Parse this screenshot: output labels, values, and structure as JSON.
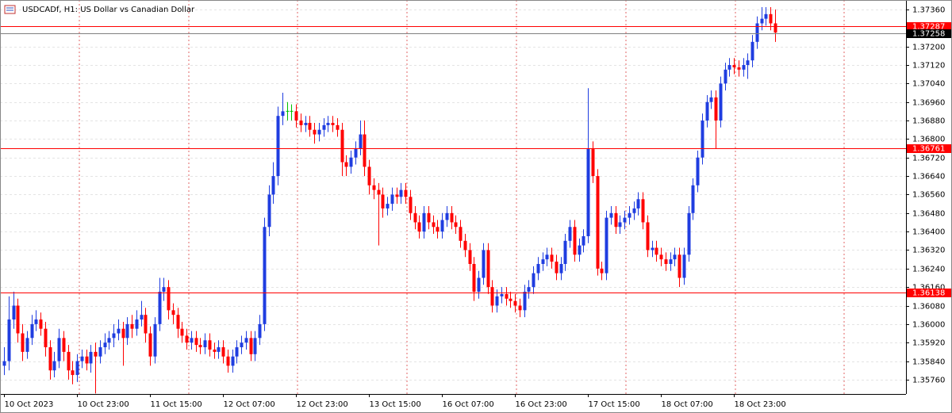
{
  "chart_data": {
    "type": "candlestick",
    "title": "USDCADf, H1: US Dollar vs Canadian Dollar",
    "categories": [
      "10 Oct 2023",
      null,
      null,
      null,
      null,
      null,
      null,
      null,
      null,
      null,
      null,
      null,
      null,
      null,
      null,
      null,
      "10 Oct 23:00",
      null,
      null,
      null,
      null,
      null,
      null,
      null,
      null,
      null,
      null,
      null,
      null,
      null,
      null,
      null,
      "11 Oct 15:00",
      null,
      null,
      null,
      null,
      null,
      null,
      null,
      null,
      null,
      null,
      null,
      null,
      null,
      null,
      null,
      "12 Oct 07:00",
      null,
      null,
      null,
      null,
      null,
      null,
      null,
      null,
      null,
      null,
      null,
      null,
      null,
      null,
      null,
      "12 Oct 23:00",
      null,
      null,
      null,
      null,
      null,
      null,
      null,
      null,
      null,
      null,
      null,
      null,
      null,
      null,
      null,
      "13 Oct 15:00",
      null,
      null,
      null,
      null,
      null,
      null,
      null,
      null,
      null,
      null,
      null,
      null,
      null,
      null,
      null,
      "16 Oct 07:00",
      null,
      null,
      null,
      null,
      null,
      null,
      null,
      null,
      null,
      null,
      null,
      null,
      null,
      null,
      null,
      "16 Oct 23:00",
      null,
      null,
      null,
      null,
      null,
      null,
      null,
      null,
      null,
      null,
      null,
      null,
      null,
      null,
      null,
      "17 Oct 15:00",
      null,
      null,
      null,
      null,
      null,
      null,
      null,
      null,
      null,
      null,
      null,
      null,
      null,
      null,
      null,
      "18 Oct 07:00",
      null,
      null,
      null,
      null,
      null,
      null,
      null,
      null,
      null,
      null,
      null,
      null,
      null,
      null,
      null,
      "18 Oct 23:00",
      null,
      null,
      null,
      null,
      null,
      null,
      null,
      null,
      null
    ],
    "open": [
      1.3582,
      1.3584,
      1.3602,
      1.3608,
      1.3596,
      1.3588,
      1.3594,
      1.36,
      1.3602,
      1.3598,
      1.359,
      1.358,
      1.3584,
      1.3594,
      1.3588,
      1.358,
      1.3578,
      1.3584,
      1.3586,
      1.3583,
      1.3588,
      1.3586,
      1.359,
      1.3592,
      1.3594,
      1.3596,
      1.3598,
      1.3594,
      1.36,
      1.3598,
      1.3602,
      1.3604,
      1.3596,
      1.3586,
      1.36,
      1.3614,
      1.3616,
      1.3606,
      1.3604,
      1.3598,
      1.3595,
      1.3592,
      1.3594,
      1.3591,
      1.359,
      1.3593,
      1.3589,
      1.3588,
      1.359,
      1.3586,
      1.3582,
      1.3586,
      1.359,
      1.3592,
      1.3594,
      1.3587,
      1.3594,
      1.36,
      1.3642,
      1.3656,
      1.3664,
      1.369,
      1.3692,
      1.3692,
      1.3692,
      1.3688,
      1.3686,
      1.3687,
      1.3684,
      1.3682,
      1.3684,
      1.3686,
      1.3687,
      1.3686,
      1.3684,
      1.367,
      1.3668,
      1.3672,
      1.3676,
      1.3682,
      1.3668,
      1.366,
      1.3658,
      1.3656,
      1.365,
      1.3652,
      1.3656,
      1.3655,
      1.3658,
      1.3655,
      1.3648,
      1.3644,
      1.364,
      1.3648,
      1.3644,
      1.3642,
      1.364,
      1.3645,
      1.3648,
      1.3644,
      1.3642,
      1.3636,
      1.3632,
      1.3626,
      1.3614,
      1.362,
      1.3632,
      1.3616,
      1.3608,
      1.3612,
      1.3613,
      1.3611,
      1.361,
      1.3608,
      1.3606,
      1.3614,
      1.3616,
      1.3622,
      1.3626,
      1.3628,
      1.363,
      1.3627,
      1.3622,
      1.3626,
      1.3636,
      1.3642,
      1.363,
      1.3634,
      1.3638,
      1.3676,
      1.3664,
      1.3624,
      1.3622,
      1.3646,
      1.3648,
      1.3642,
      1.3644,
      1.3646,
      1.3648,
      1.365,
      1.3654,
      1.3644,
      1.3632,
      1.3633,
      1.363,
      1.3628,
      1.3626,
      1.3628,
      1.363,
      1.362,
      1.363,
      1.3648,
      1.366,
      1.3672,
      1.3688,
      1.3696,
      1.3698,
      1.3688,
      1.3704,
      1.371,
      1.3712,
      1.3711,
      1.371,
      1.3712,
      1.3714,
      1.3722,
      1.373,
      1.3732,
      1.3734,
      1.373
    ],
    "high": [
      1.359,
      1.3612,
      1.3614,
      1.3611,
      1.36,
      1.3597,
      1.3604,
      1.3606,
      1.3605,
      1.3601,
      1.3593,
      1.3588,
      1.3598,
      1.3597,
      1.3591,
      1.3584,
      1.3587,
      1.3589,
      1.3589,
      1.3591,
      1.3592,
      1.3593,
      1.3596,
      1.3597,
      1.36,
      1.3602,
      1.3601,
      1.3603,
      1.3604,
      1.3606,
      1.361,
      1.3607,
      1.3599,
      1.3603,
      1.362,
      1.362,
      1.3619,
      1.3609,
      1.3607,
      1.3601,
      1.3598,
      1.3597,
      1.3597,
      1.3594,
      1.3596,
      1.3596,
      1.3592,
      1.3593,
      1.3593,
      1.3589,
      1.3589,
      1.3593,
      1.3595,
      1.3597,
      1.3597,
      1.3597,
      1.3604,
      1.3646,
      1.366,
      1.367,
      1.3694,
      1.37,
      1.3696,
      1.3695,
      1.3695,
      1.3691,
      1.369,
      1.369,
      1.3687,
      1.3687,
      1.3689,
      1.369,
      1.369,
      1.3689,
      1.3687,
      1.3673,
      1.3675,
      1.3679,
      1.3688,
      1.3688,
      1.3671,
      1.3663,
      1.3661,
      1.3659,
      1.3655,
      1.3659,
      1.3659,
      1.3661,
      1.3661,
      1.3658,
      1.3651,
      1.3647,
      1.3651,
      1.3651,
      1.3647,
      1.3645,
      1.3648,
      1.3651,
      1.3651,
      1.3647,
      1.3645,
      1.3639,
      1.3635,
      1.3629,
      1.3623,
      1.3635,
      1.3635,
      1.3619,
      1.3615,
      1.3616,
      1.3616,
      1.3614,
      1.3613,
      1.3611,
      1.3617,
      1.3619,
      1.3625,
      1.3629,
      1.3631,
      1.3633,
      1.3633,
      1.363,
      1.3629,
      1.3639,
      1.3645,
      1.3645,
      1.3637,
      1.3641,
      1.3702,
      1.3679,
      1.3667,
      1.3627,
      1.3649,
      1.3651,
      1.3651,
      1.3647,
      1.3649,
      1.3651,
      1.3653,
      1.3657,
      1.3657,
      1.3647,
      1.3636,
      1.3636,
      1.3633,
      1.3631,
      1.3631,
      1.3633,
      1.3633,
      1.3633,
      1.3651,
      1.3663,
      1.3675,
      1.3691,
      1.3699,
      1.3701,
      1.3701,
      1.3707,
      1.3713,
      1.3715,
      1.3715,
      1.3714,
      1.3715,
      1.3717,
      1.3725,
      1.3733,
      1.3737,
      1.3737,
      1.3737,
      1.3736
    ],
    "low": [
      1.3578,
      1.358,
      1.3598,
      1.3592,
      1.3584,
      1.3585,
      1.3591,
      1.3597,
      1.3595,
      1.3586,
      1.3576,
      1.3577,
      1.3581,
      1.3584,
      1.3576,
      1.3574,
      1.3575,
      1.3581,
      1.358,
      1.3579,
      1.357,
      1.3583,
      1.3587,
      1.3589,
      1.359,
      1.3593,
      1.3582,
      1.3591,
      1.3594,
      1.3595,
      1.3599,
      1.3592,
      1.3582,
      1.3583,
      1.3597,
      1.361,
      1.3602,
      1.36,
      1.3594,
      1.3592,
      1.3589,
      1.3589,
      1.3588,
      1.3587,
      1.3587,
      1.3586,
      1.3585,
      1.3585,
      1.3583,
      1.3579,
      1.3579,
      1.3583,
      1.3587,
      1.3589,
      1.3584,
      1.3584,
      1.3591,
      1.3597,
      1.3638,
      1.3652,
      1.366,
      1.3686,
      1.3688,
      1.3688,
      1.3685,
      1.3683,
      1.3683,
      1.3681,
      1.3678,
      1.3679,
      1.3681,
      1.3683,
      1.3683,
      1.3681,
      1.3664,
      1.3664,
      1.3665,
      1.3669,
      1.3673,
      1.3664,
      1.3656,
      1.3654,
      1.3634,
      1.3646,
      1.3647,
      1.3649,
      1.3652,
      1.3652,
      1.3652,
      1.3645,
      1.3641,
      1.3637,
      1.3637,
      1.3641,
      1.3639,
      1.3637,
      1.3637,
      1.3642,
      1.3641,
      1.3639,
      1.3633,
      1.3629,
      1.3623,
      1.361,
      1.3611,
      1.3617,
      1.3613,
      1.3605,
      1.3605,
      1.3609,
      1.3608,
      1.3607,
      1.3605,
      1.3603,
      1.3603,
      1.3611,
      1.3613,
      1.3619,
      1.3623,
      1.3625,
      1.3624,
      1.3619,
      1.3619,
      1.3623,
      1.3633,
      1.3627,
      1.3627,
      1.3631,
      1.3635,
      1.3661,
      1.3621,
      1.3619,
      1.3619,
      1.3643,
      1.3639,
      1.3639,
      1.3641,
      1.3643,
      1.3645,
      1.3647,
      1.3641,
      1.3629,
      1.3629,
      1.3627,
      1.3625,
      1.3623,
      1.3623,
      1.3625,
      1.3616,
      1.3617,
      1.3627,
      1.3645,
      1.3657,
      1.3669,
      1.3685,
      1.3693,
      1.3676,
      1.3685,
      1.3701,
      1.3707,
      1.3708,
      1.3707,
      1.3707,
      1.3706,
      1.3711,
      1.3719,
      1.3727,
      1.3729,
      1.3727,
      1.3722
    ],
    "close": [
      1.3584,
      1.3602,
      1.3608,
      1.3596,
      1.3588,
      1.3594,
      1.36,
      1.3602,
      1.3598,
      1.359,
      1.358,
      1.3584,
      1.3594,
      1.3588,
      1.358,
      1.3578,
      1.3584,
      1.3586,
      1.3583,
      1.3588,
      1.3586,
      1.359,
      1.3592,
      1.3594,
      1.3596,
      1.3598,
      1.3594,
      1.36,
      1.3598,
      1.3602,
      1.3604,
      1.3596,
      1.3586,
      1.36,
      1.3614,
      1.3616,
      1.3606,
      1.3604,
      1.3598,
      1.3595,
      1.3592,
      1.3594,
      1.3591,
      1.359,
      1.3593,
      1.3589,
      1.3588,
      1.359,
      1.3586,
      1.3582,
      1.3586,
      1.359,
      1.3592,
      1.3594,
      1.3587,
      1.3594,
      1.36,
      1.3642,
      1.3656,
      1.3664,
      1.369,
      1.3692,
      1.3692,
      1.3692,
      1.3688,
      1.3686,
      1.3687,
      1.3684,
      1.3682,
      1.3684,
      1.3686,
      1.3687,
      1.3686,
      1.3684,
      1.367,
      1.3668,
      1.3672,
      1.3676,
      1.3682,
      1.3668,
      1.366,
      1.3658,
      1.3656,
      1.365,
      1.3652,
      1.3656,
      1.3655,
      1.3658,
      1.3655,
      1.3648,
      1.3644,
      1.364,
      1.3648,
      1.3644,
      1.3642,
      1.364,
      1.3645,
      1.3648,
      1.3644,
      1.3642,
      1.3636,
      1.3632,
      1.3626,
      1.3614,
      1.362,
      1.3632,
      1.3616,
      1.3608,
      1.3612,
      1.3613,
      1.3611,
      1.361,
      1.3608,
      1.3606,
      1.3614,
      1.3616,
      1.3622,
      1.3626,
      1.3628,
      1.363,
      1.3627,
      1.3622,
      1.3626,
      1.3636,
      1.3642,
      1.363,
      1.3634,
      1.3638,
      1.3676,
      1.3664,
      1.3624,
      1.3622,
      1.3646,
      1.3648,
      1.3642,
      1.3644,
      1.3646,
      1.3648,
      1.365,
      1.3654,
      1.3644,
      1.3632,
      1.3633,
      1.363,
      1.3628,
      1.3626,
      1.3628,
      1.363,
      1.362,
      1.363,
      1.3648,
      1.366,
      1.3672,
      1.3688,
      1.3696,
      1.3698,
      1.3688,
      1.3704,
      1.371,
      1.3712,
      1.3711,
      1.371,
      1.3712,
      1.3714,
      1.3722,
      1.373,
      1.3732,
      1.3734,
      1.373,
      1.3726
    ],
    "up_color": "#1f3de0",
    "down_color": "#ff0000",
    "doji_color": "#00c000",
    "ylim": [
      1.35698,
      1.37401
    ],
    "yticks": [
      {
        "value": 1.3576,
        "label": "1.35760"
      },
      {
        "value": 1.3584,
        "label": "1.35840"
      },
      {
        "value": 1.3592,
        "label": "1.35920"
      },
      {
        "value": 1.36,
        "label": "1.36000"
      },
      {
        "value": 1.3608,
        "label": "1.36080"
      },
      {
        "value": 1.3616,
        "label": "1.36160"
      },
      {
        "value": 1.3624,
        "label": "1.36240"
      },
      {
        "value": 1.3632,
        "label": "1.36320"
      },
      {
        "value": 1.364,
        "label": "1.36400"
      },
      {
        "value": 1.3648,
        "label": "1.36480"
      },
      {
        "value": 1.3656,
        "label": "1.36560"
      },
      {
        "value": 1.3664,
        "label": "1.36640"
      },
      {
        "value": 1.3672,
        "label": "1.36720"
      },
      {
        "value": 1.368,
        "label": "1.36800"
      },
      {
        "value": 1.3688,
        "label": "1.36880"
      },
      {
        "value": 1.3696,
        "label": "1.36960"
      },
      {
        "value": 1.3704,
        "label": "1.37040"
      },
      {
        "value": 1.3712,
        "label": "1.37120"
      },
      {
        "value": 1.372,
        "label": "1.37200"
      },
      {
        "value": 1.3736,
        "label": "1.37360"
      }
    ],
    "grid": true,
    "hlines": [
      {
        "value": 1.37287,
        "label": "1.37287",
        "color": "#ff0000"
      },
      {
        "value": 1.37258,
        "label": "1.37258",
        "color": "#808080",
        "label_color": "#000000"
      },
      {
        "value": 1.36761,
        "label": "1.36761",
        "color": "#ff0000"
      },
      {
        "value": 1.36138,
        "label": "1.36138",
        "color": "#ff0000"
      }
    ]
  }
}
